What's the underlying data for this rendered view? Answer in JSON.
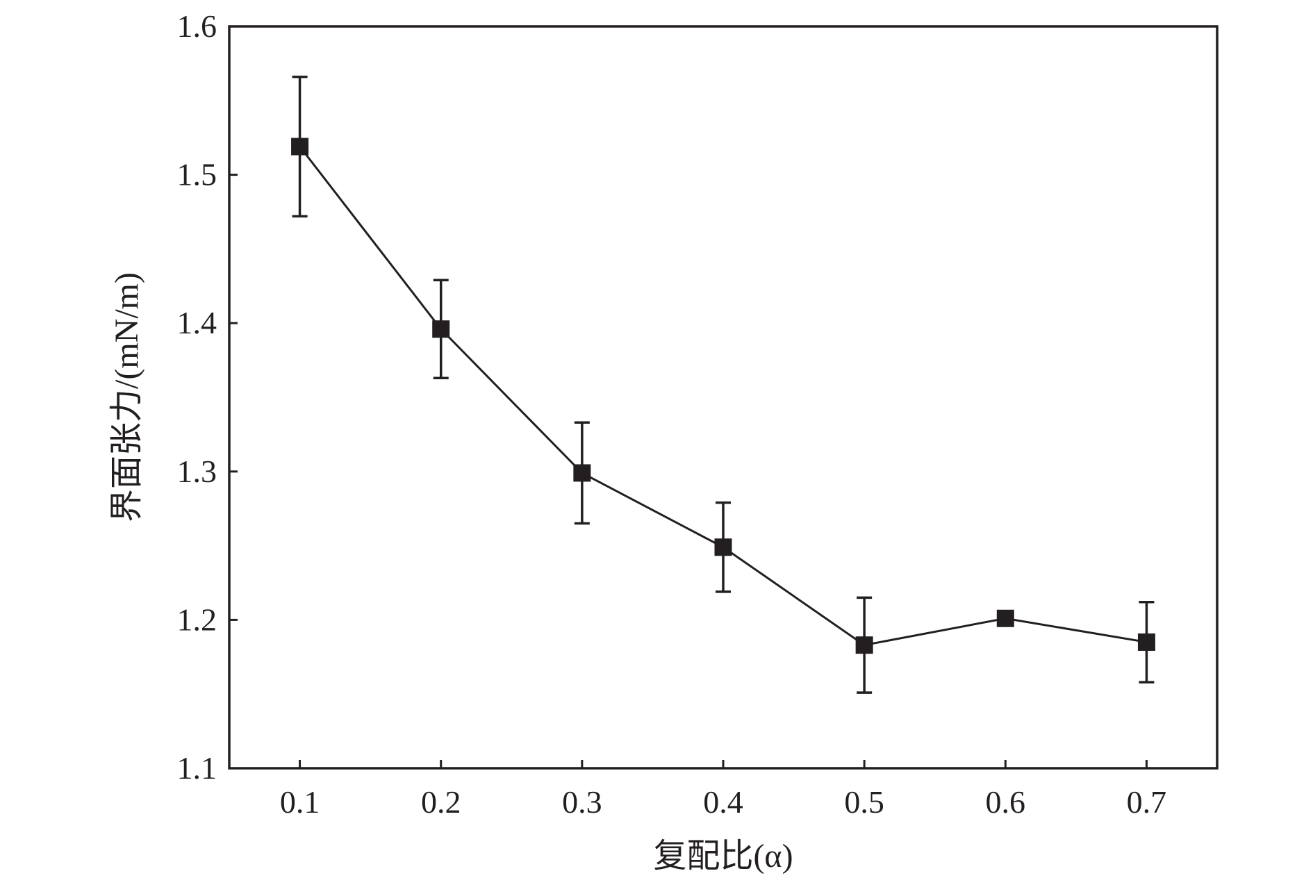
{
  "chart_data": {
    "type": "line",
    "title": "",
    "xlabel": "复配比(α)",
    "ylabel": "界面张力/(mN/m)",
    "xlim": [
      0.05,
      0.75
    ],
    "ylim": [
      1.1,
      1.6
    ],
    "x_ticks": [
      "0.1",
      "0.2",
      "0.3",
      "0.4",
      "0.5",
      "0.6",
      "0.7"
    ],
    "y_ticks": [
      "1.1",
      "1.2",
      "1.3",
      "1.4",
      "1.5",
      "1.6"
    ],
    "grid": false,
    "series": [
      {
        "marker": "square",
        "color": "#231f20",
        "x": [
          0.1,
          0.2,
          0.3,
          0.4,
          0.5,
          0.6,
          0.7
        ],
        "values": [
          1.519,
          1.396,
          1.299,
          1.249,
          1.183,
          1.201,
          1.185
        ],
        "error": [
          0.047,
          0.033,
          0.034,
          0.03,
          0.032,
          0,
          0.027
        ]
      }
    ]
  }
}
